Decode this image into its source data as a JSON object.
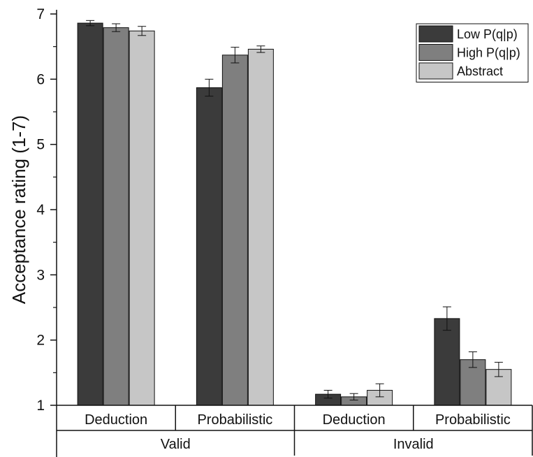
{
  "chart_data": {
    "type": "bar",
    "ylabel": "Acceptance rating (1-7)",
    "ylim": [
      1,
      7
    ],
    "yticks": [
      "1",
      "2",
      "3",
      "4",
      "5",
      "6",
      "7"
    ],
    "legend_position": "top-right",
    "series": [
      {
        "name": "Low P(q|p)",
        "color": "#3b3b3b",
        "values": [
          6.86,
          5.87,
          1.17,
          2.33
        ],
        "errors": [
          0.04,
          0.13,
          0.06,
          0.18
        ]
      },
      {
        "name": "High P(q|p)",
        "color": "#7f7f7f",
        "values": [
          6.79,
          6.37,
          1.13,
          1.7
        ],
        "errors": [
          0.06,
          0.12,
          0.05,
          0.12
        ]
      },
      {
        "name": "Abstract",
        "color": "#c6c6c6",
        "values": [
          6.74,
          6.46,
          1.23,
          1.55
        ],
        "errors": [
          0.07,
          0.05,
          0.1,
          0.11
        ]
      }
    ],
    "categories": [
      "Deduction",
      "Probabilistic",
      "Deduction",
      "Probabilistic"
    ],
    "groups": [
      {
        "label": "Valid",
        "span": [
          0,
          1
        ]
      },
      {
        "label": "Invalid",
        "span": [
          2,
          3
        ]
      }
    ]
  }
}
